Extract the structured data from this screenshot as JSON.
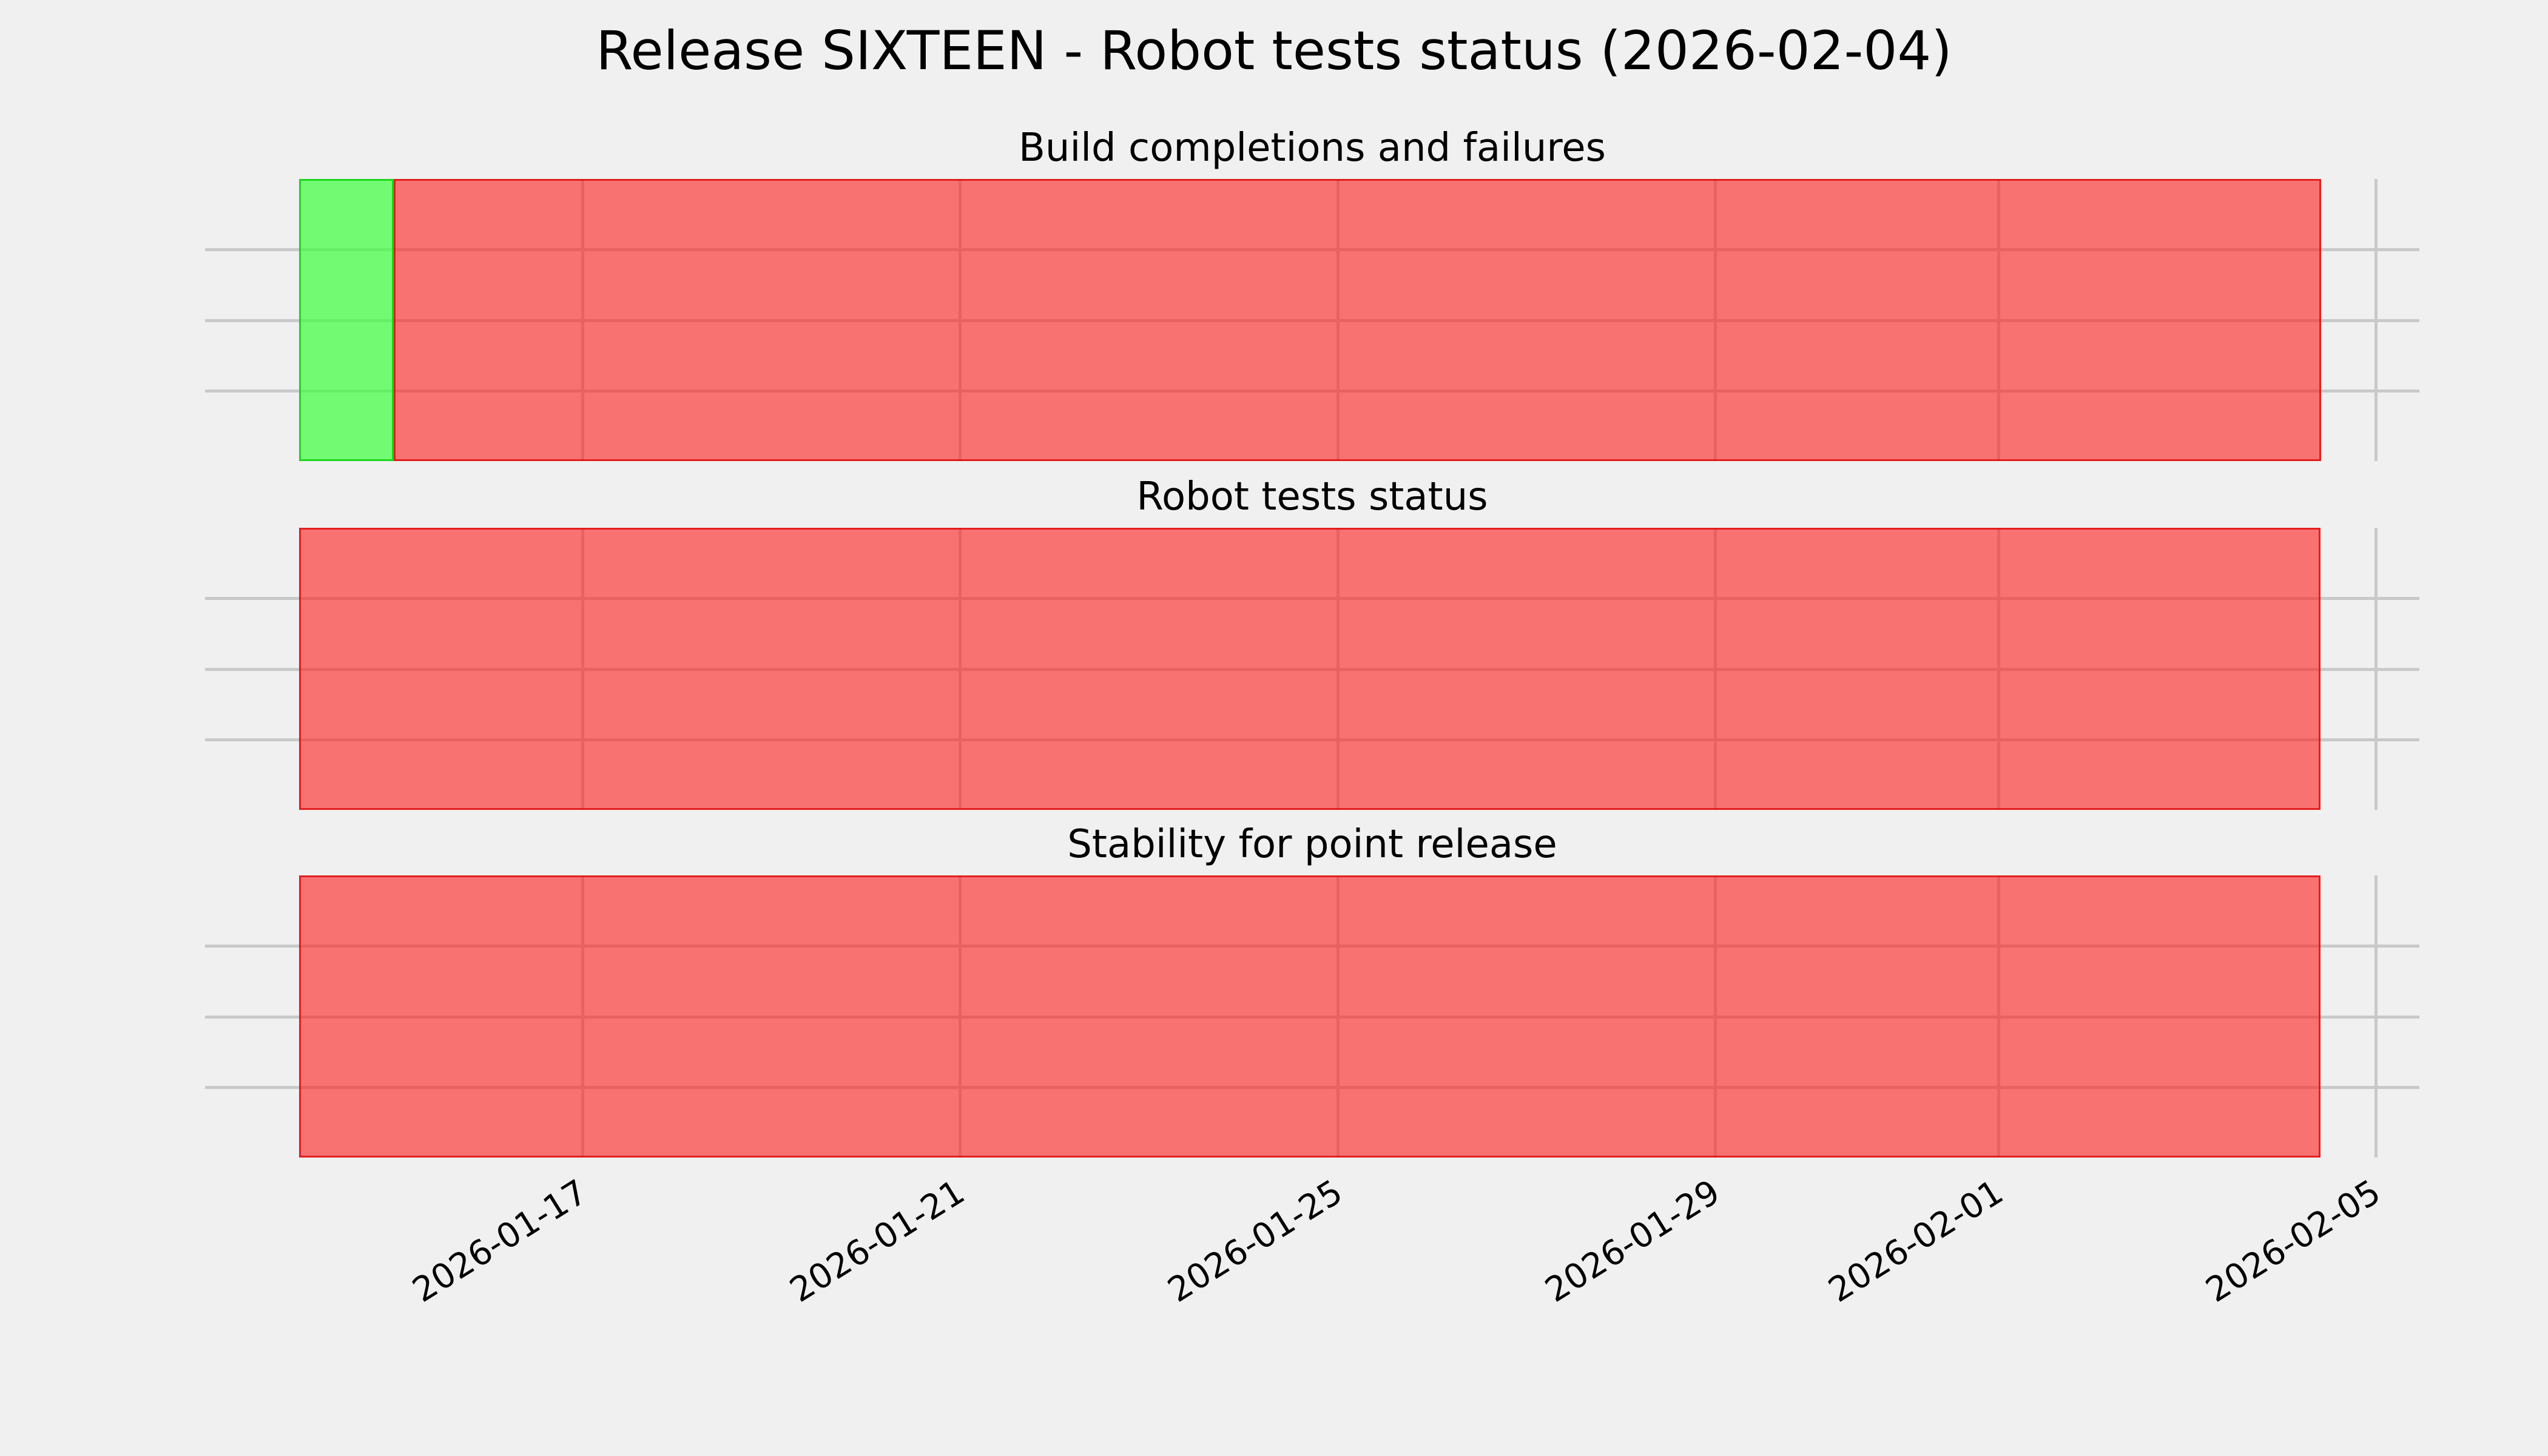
{
  "chart_data": {
    "type": "bar",
    "subtype": "status-timeline",
    "title": "Release SIXTEEN - Robot tests status (2026-02-04)",
    "subplots": [
      {
        "title": "Build completions and failures",
        "rows": 4,
        "segments": [
          {
            "color": "green",
            "start": "2026-01-14",
            "end": "2026-01-15"
          },
          {
            "color": "red",
            "start": "2026-01-15",
            "end": "2026-02-04 10:00"
          }
        ]
      },
      {
        "title": "Robot tests status",
        "rows": 4,
        "segments": [
          {
            "color": "red",
            "start": "2026-01-14",
            "end": "2026-02-04 10:00"
          }
        ]
      },
      {
        "title": "Stability for point release",
        "rows": 4,
        "segments": [
          {
            "color": "red",
            "start": "2026-01-14",
            "end": "2026-02-04 10:00"
          }
        ]
      }
    ],
    "x_axis": {
      "ticks": [
        "2026-01-17",
        "2026-01-21",
        "2026-01-25",
        "2026-01-29",
        "2026-02-01",
        "2026-02-05"
      ],
      "range": [
        "2026-01-13",
        "2026-02-05 11:00"
      ],
      "tick_rotation_deg": 32
    },
    "y_axis": {
      "tick_labels": []
    },
    "grid": true,
    "legend": false,
    "colors": {
      "background": "#f0f0f0",
      "grid": "#c9c9c9",
      "text": "#000000",
      "green_fill": "rgba(60,255,60,0.70)",
      "green_edge": "rgba(20,210,20,0.90)",
      "red_fill": "rgba(255,30,30,0.60)",
      "red_edge": "rgba(220,10,10,0.80)"
    }
  }
}
